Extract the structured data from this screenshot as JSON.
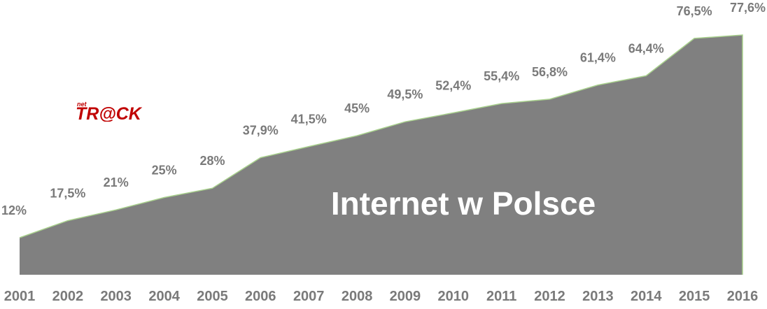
{
  "chart_data": {
    "type": "area",
    "title": "Internet w Polsce",
    "xlabel": "",
    "ylabel": "",
    "ylim": [
      0,
      100
    ],
    "grid": false,
    "legend": "none",
    "categories": [
      "2001",
      "2002",
      "2003",
      "2004",
      "2005",
      "2006",
      "2007",
      "2008",
      "2009",
      "2010",
      "2011",
      "2012",
      "2013",
      "2014",
      "2015",
      "2016"
    ],
    "values": [
      12,
      17.5,
      21,
      25,
      28,
      37.9,
      41.5,
      45,
      49.5,
      52.4,
      55.4,
      56.8,
      61.4,
      64.4,
      76.5,
      77.6
    ],
    "data_labels": [
      "12%",
      "17,5%",
      "21%",
      "25%",
      "28%",
      "37,9%",
      "41,5%",
      "45%",
      "49,5%",
      "52,4%",
      "55,4%",
      "56,8%",
      "61,4%",
      "64,4%",
      "76,5%",
      "77,6%"
    ],
    "colors": {
      "fill": "#808080",
      "outline": "#a8d08d",
      "label": "#7a7a7a",
      "title": "#ffffff"
    }
  },
  "logo": {
    "prefix": "net",
    "text": "TR@CK",
    "color": "#c00000"
  }
}
